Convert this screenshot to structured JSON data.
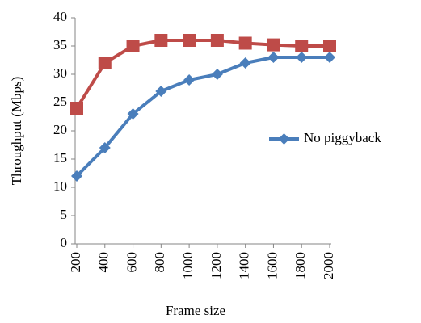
{
  "chart_data": {
    "type": "line",
    "xlabel": "Frame size",
    "ylabel": "Throughput (Mbps)",
    "categories": [
      "200",
      "400",
      "600",
      "800",
      "1000",
      "1200",
      "1400",
      "1600",
      "1800",
      "2000"
    ],
    "series": [
      {
        "name": "No piggyback",
        "color": "#4a7ebb",
        "marker": "diamond",
        "values": [
          12,
          17,
          23,
          27,
          29,
          30,
          32,
          33,
          33,
          33
        ]
      },
      {
        "color": "#be4b48",
        "marker": "square",
        "values": [
          24,
          32,
          35,
          36,
          36,
          36,
          35.5,
          35.2,
          35,
          35
        ]
      }
    ],
    "ylim": [
      0,
      40
    ],
    "yticks": [
      0,
      5,
      10,
      15,
      20,
      25,
      30,
      35,
      40
    ],
    "grid": false,
    "legend": "right"
  }
}
